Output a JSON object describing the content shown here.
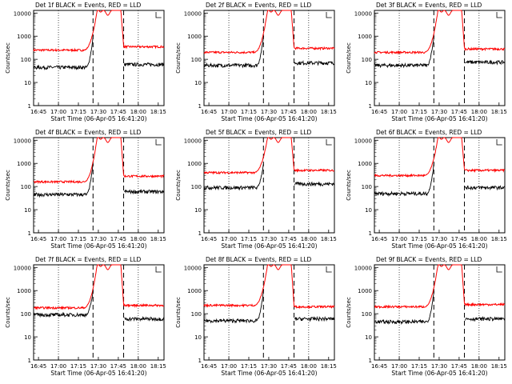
{
  "chart_data": {
    "type": "line",
    "y_scale": "log",
    "ylim": [
      1,
      13000
    ],
    "ylabel": "Counts/sec",
    "xlabel": "Start Time (06-Apr-05 16:41:20)",
    "x_tick_labels": [
      "16:45",
      "17:00",
      "17:15",
      "17:30",
      "17:45",
      "18:00",
      "18:15"
    ],
    "y_tick_labels": [
      "1",
      "10",
      "100",
      "1000",
      "10000"
    ],
    "series_colors": {
      "events": "#000000",
      "lld": "#ff0000"
    },
    "panels": [
      {
        "title": "Det 1f BLACK = Events, RED = LLD",
        "lld_pre": 250,
        "lld_post": 350,
        "ev_pre": 45,
        "ev_post": 60
      },
      {
        "title": "Det 2f BLACK = Events, RED = LLD",
        "lld_pre": 200,
        "lld_post": 300,
        "ev_pre": 55,
        "ev_post": 70
      },
      {
        "title": "Det 3f BLACK = Events, RED = LLD",
        "lld_pre": 200,
        "lld_post": 280,
        "ev_pre": 55,
        "ev_post": 75
      },
      {
        "title": "Det 4f BLACK = Events, RED = LLD",
        "lld_pre": 160,
        "lld_post": 280,
        "ev_pre": 45,
        "ev_post": 60
      },
      {
        "title": "Det 5f BLACK = Events, RED = LLD",
        "lld_pre": 400,
        "lld_post": 500,
        "ev_pre": 90,
        "ev_post": 130
      },
      {
        "title": "Det 6f BLACK = Events, RED = LLD",
        "lld_pre": 300,
        "lld_post": 500,
        "ev_pre": 50,
        "ev_post": 90
      },
      {
        "title": "Det 7f BLACK = Events, RED = LLD",
        "lld_pre": 180,
        "lld_post": 230,
        "ev_pre": 90,
        "ev_post": 60
      },
      {
        "title": "Det 8f BLACK = Events, RED = LLD",
        "lld_pre": 230,
        "lld_post": 200,
        "ev_pre": 50,
        "ev_post": 60
      },
      {
        "title": "Det 9f BLACK = Events, RED = LLD",
        "lld_pre": 200,
        "lld_post": 250,
        "ev_pre": 45,
        "ev_post": 60
      }
    ]
  }
}
